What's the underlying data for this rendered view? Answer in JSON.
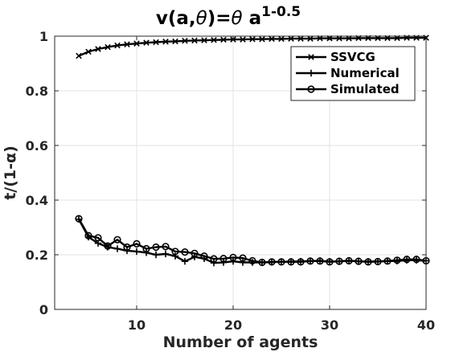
{
  "chart_data": {
    "type": "line",
    "title": {
      "prefix": "v(a,",
      "theta": "θ",
      "middle": ")=",
      "theta2": "θ",
      "base": " a",
      "exponent": "1-0.5"
    },
    "xlabel": "Number of agents",
    "ylabel": "t/(1-α)",
    "xlim": [
      1.5,
      40
    ],
    "ylim": [
      0,
      1
    ],
    "xticks": [
      10,
      20,
      30,
      40
    ],
    "yticks": [
      0,
      0.2,
      0.4,
      0.6,
      0.8,
      1
    ],
    "ytick_labels": [
      "0",
      "0.2",
      "0.4",
      "0.6",
      "0.8",
      "1"
    ],
    "grid": true,
    "legend_position": "top-right",
    "x": [
      4,
      5,
      6,
      7,
      8,
      9,
      10,
      11,
      12,
      13,
      14,
      15,
      16,
      17,
      18,
      19,
      20,
      21,
      22,
      23,
      24,
      25,
      26,
      27,
      28,
      29,
      30,
      31,
      32,
      33,
      34,
      35,
      36,
      37,
      38,
      39,
      40
    ],
    "series": [
      {
        "name": "SSVCG",
        "marker": "x",
        "values": [
          0.928,
          0.943,
          0.953,
          0.96,
          0.966,
          0.97,
          0.973,
          0.976,
          0.978,
          0.98,
          0.981,
          0.983,
          0.984,
          0.985,
          0.986,
          0.987,
          0.988,
          0.988,
          0.989,
          0.989,
          0.99,
          0.99,
          0.991,
          0.991,
          0.991,
          0.992,
          0.992,
          0.992,
          0.992,
          0.993,
          0.993,
          0.993,
          0.993,
          0.993,
          0.994,
          0.994,
          0.994
        ]
      },
      {
        "name": "Numerical",
        "marker": "+",
        "values": [
          0.33,
          0.265,
          0.242,
          0.228,
          0.222,
          0.215,
          0.212,
          0.208,
          0.2,
          0.203,
          0.195,
          0.176,
          0.192,
          0.186,
          0.17,
          0.172,
          0.176,
          0.172,
          0.172,
          0.172,
          0.173,
          0.174,
          0.175,
          0.176,
          0.177,
          0.178,
          0.175,
          0.176,
          0.178,
          0.176,
          0.175,
          0.176,
          0.177,
          0.177,
          0.18,
          0.18,
          0.178
        ]
      },
      {
        "name": "Simulated",
        "marker": "o",
        "values": [
          0.332,
          0.27,
          0.262,
          0.232,
          0.255,
          0.228,
          0.24,
          0.222,
          0.228,
          0.23,
          0.212,
          0.21,
          0.205,
          0.195,
          0.185,
          0.186,
          0.19,
          0.188,
          0.178,
          0.172,
          0.174,
          0.174,
          0.174,
          0.174,
          0.177,
          0.177,
          0.174,
          0.176,
          0.178,
          0.176,
          0.174,
          0.175,
          0.177,
          0.18,
          0.183,
          0.183,
          0.178
        ]
      }
    ]
  }
}
